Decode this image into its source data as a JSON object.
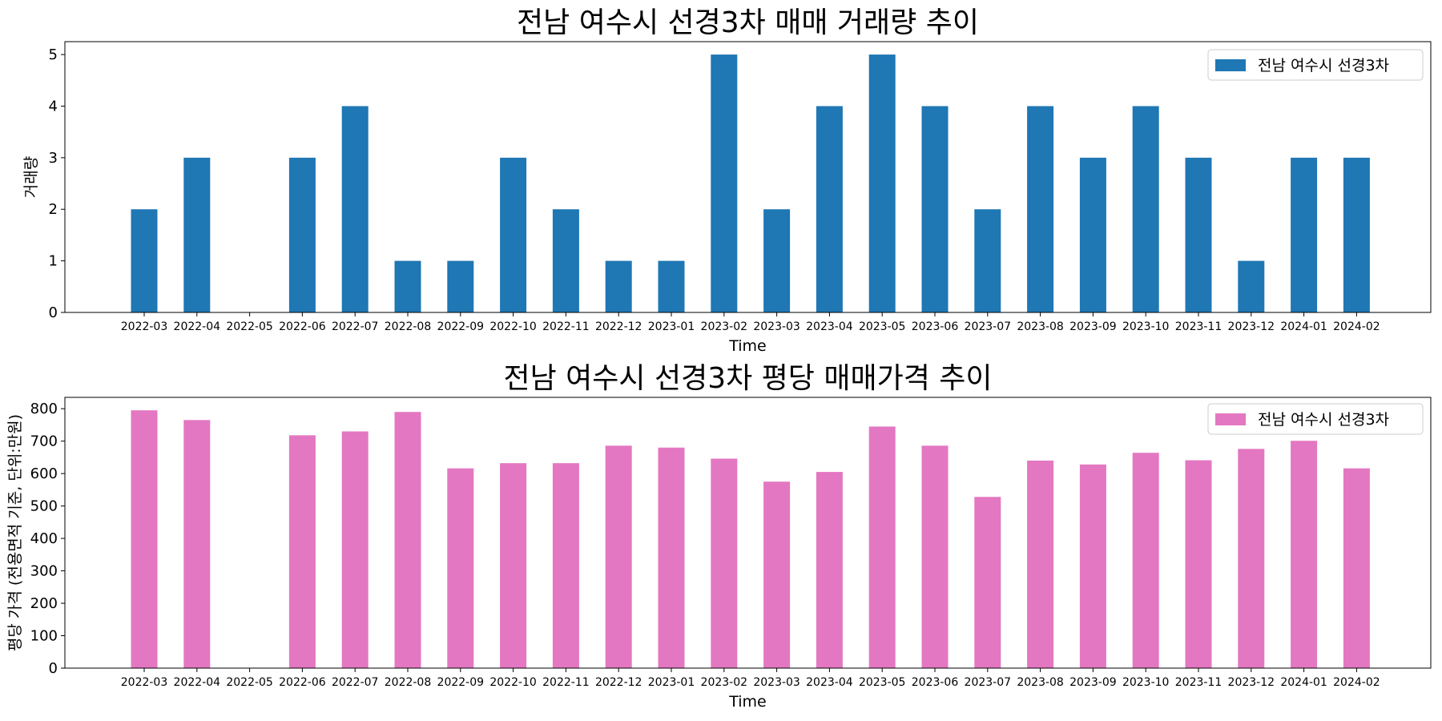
{
  "chart_data": [
    {
      "type": "bar",
      "title": "전남 여수시 선경3차 매매 거래량 추이",
      "xlabel": "Time",
      "ylabel": "거래량",
      "ylim": [
        0,
        5.25
      ],
      "yticks": [
        0,
        1,
        2,
        3,
        4,
        5
      ],
      "grid": false,
      "legend_position": "top-right",
      "categories": [
        "2022-03",
        "2022-04",
        "2022-05",
        "2022-06",
        "2022-07",
        "2022-08",
        "2022-09",
        "2022-10",
        "2022-11",
        "2022-12",
        "2023-01",
        "2023-02",
        "2023-03",
        "2023-04",
        "2023-05",
        "2023-06",
        "2023-07",
        "2023-08",
        "2023-09",
        "2023-10",
        "2023-11",
        "2023-12",
        "2024-01",
        "2024-02"
      ],
      "series": [
        {
          "name": "전남 여수시 선경3차",
          "color": "#1f77b4",
          "values": [
            2,
            3,
            0,
            3,
            4,
            1,
            1,
            3,
            2,
            1,
            1,
            5,
            2,
            4,
            5,
            4,
            2,
            4,
            3,
            4,
            3,
            1,
            3,
            3
          ]
        }
      ]
    },
    {
      "type": "bar",
      "title": "전남 여수시 선경3차 평당 매매가격 추이",
      "xlabel": "Time",
      "ylabel": "평당 가격 (전용면적 기준, 단위:만원)",
      "ylim": [
        0,
        835
      ],
      "yticks": [
        0,
        100,
        200,
        300,
        400,
        500,
        600,
        700,
        800
      ],
      "grid": false,
      "legend_position": "top-right",
      "categories": [
        "2022-03",
        "2022-04",
        "2022-05",
        "2022-06",
        "2022-07",
        "2022-08",
        "2022-09",
        "2022-10",
        "2022-11",
        "2022-12",
        "2023-01",
        "2023-02",
        "2023-03",
        "2023-04",
        "2023-05",
        "2023-06",
        "2023-07",
        "2023-08",
        "2023-09",
        "2023-10",
        "2023-11",
        "2023-12",
        "2024-01",
        "2024-02"
      ],
      "series": [
        {
          "name": "전남 여수시 선경3차",
          "color": "#e377c2",
          "values": [
            795,
            765,
            0,
            718,
            730,
            790,
            616,
            632,
            632,
            686,
            680,
            646,
            575,
            605,
            745,
            686,
            528,
            640,
            628,
            664,
            641,
            676,
            701,
            616
          ]
        }
      ]
    }
  ]
}
